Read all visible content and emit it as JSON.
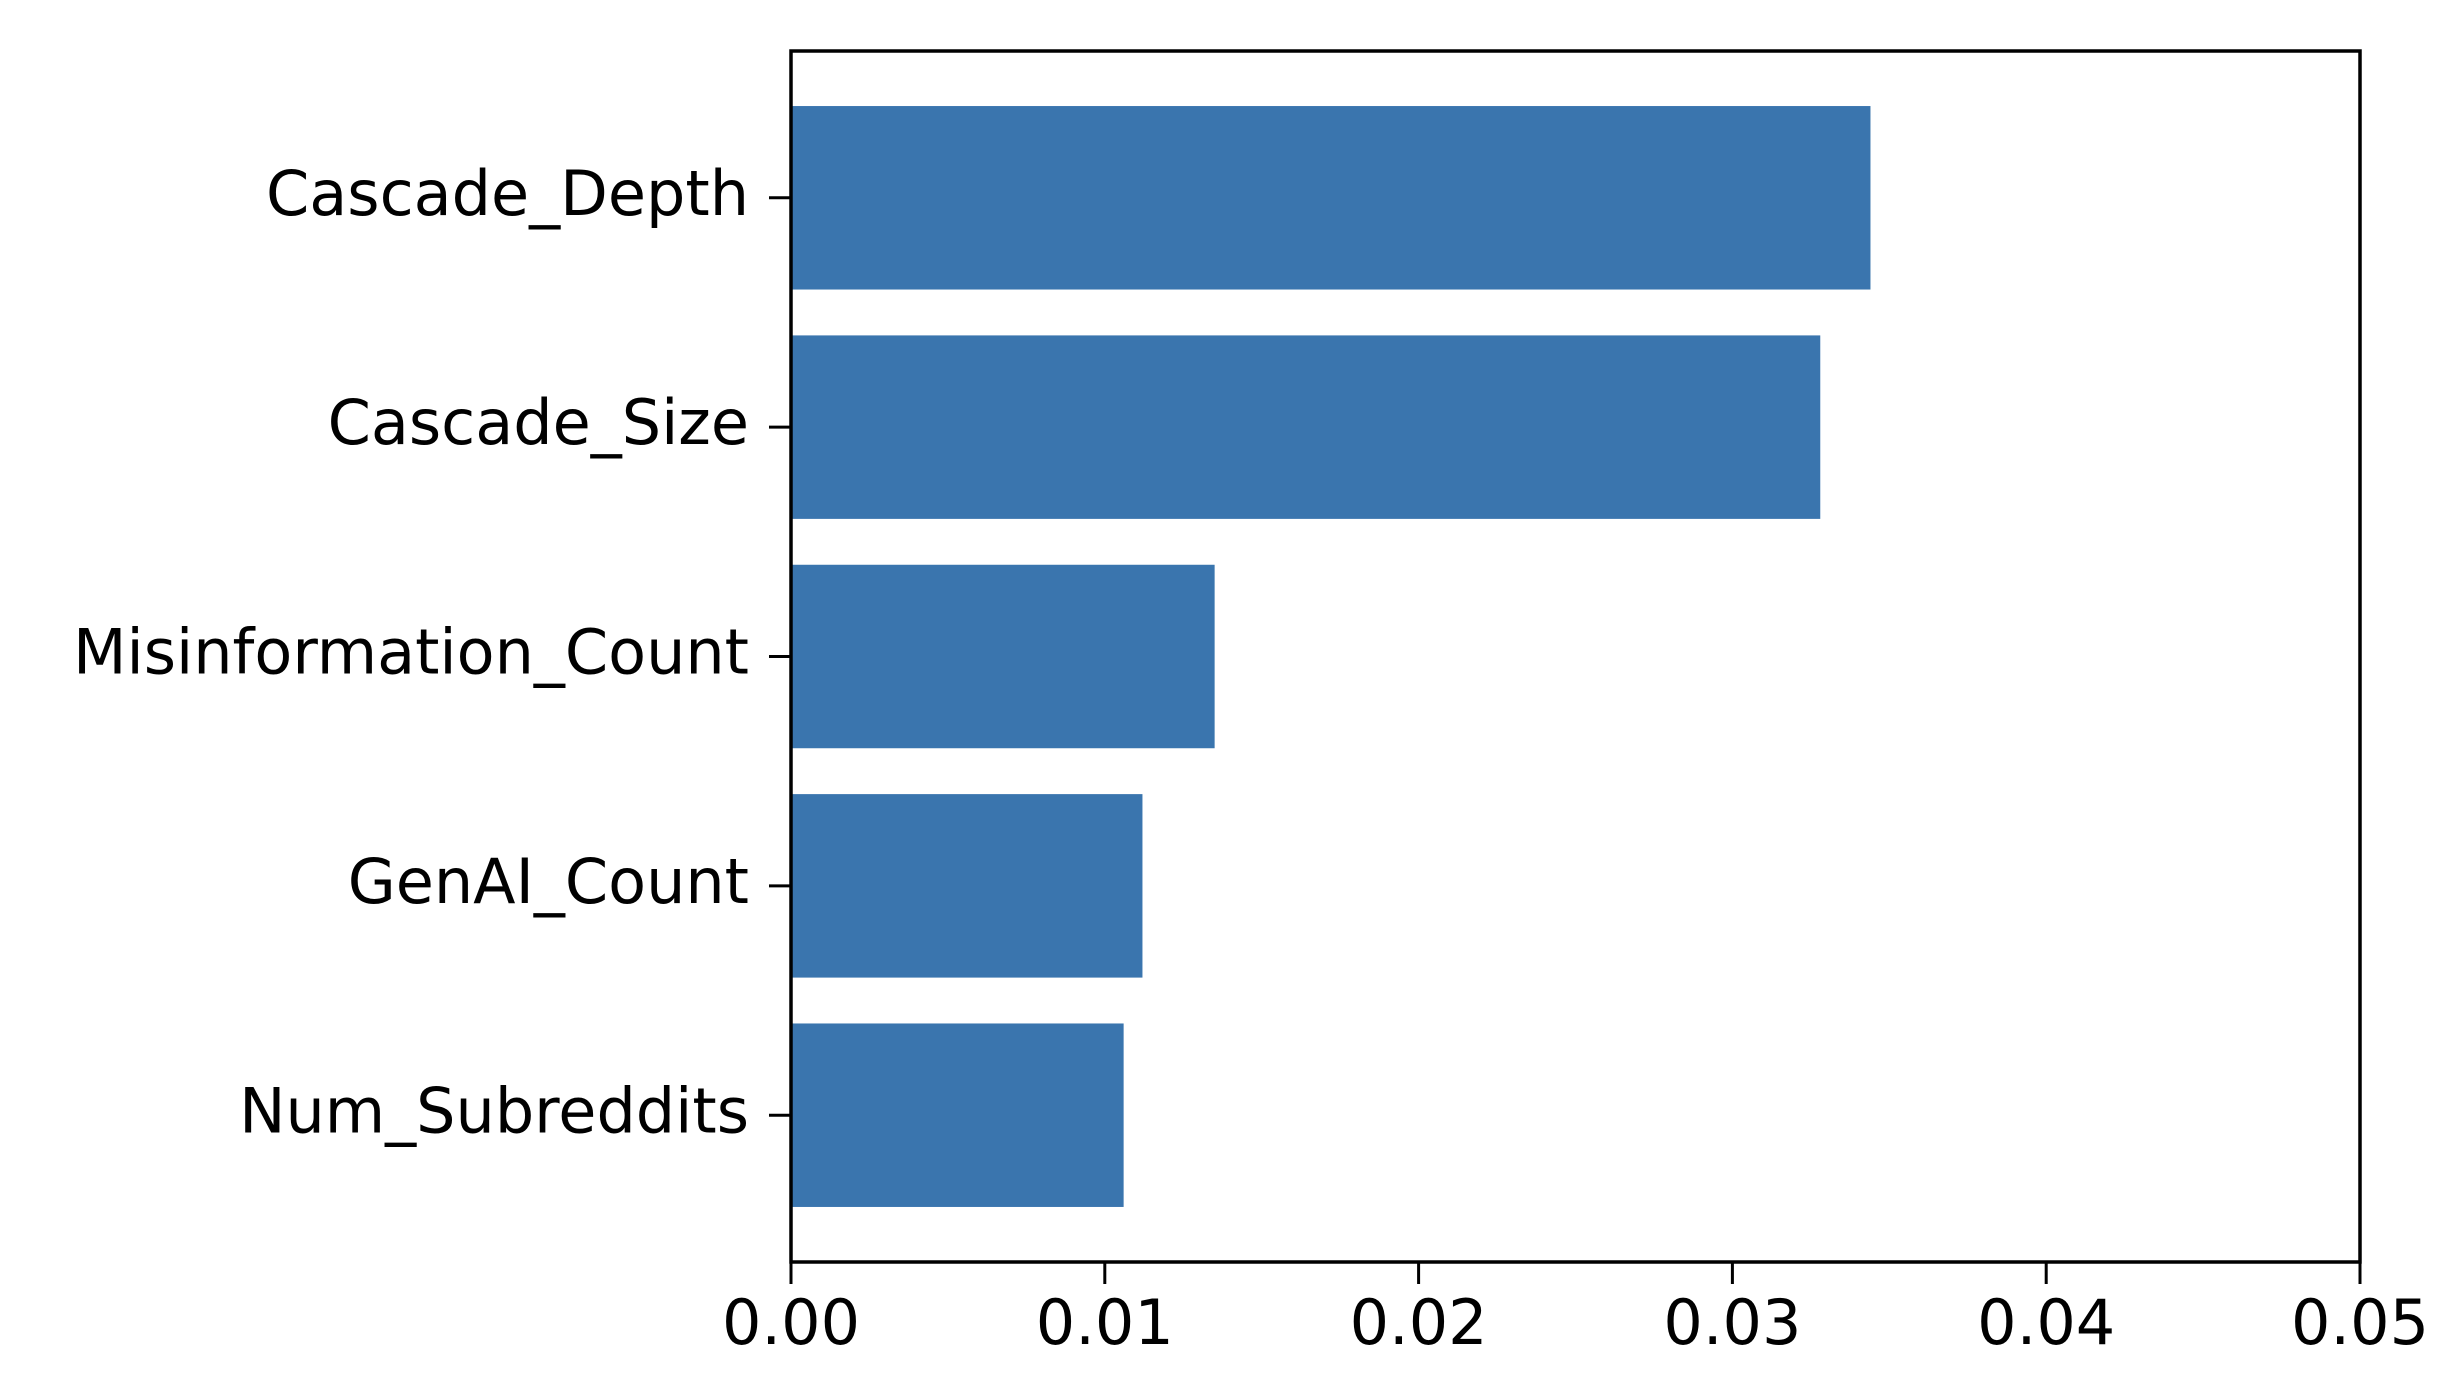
{
  "chart_data": {
    "type": "barh",
    "categories": [
      "Cascade_Depth",
      "Cascade_Size",
      "Misinformation_Count",
      "GenAI_Count",
      "Num_Subreddits"
    ],
    "values": [
      0.0344,
      0.0328,
      0.0135,
      0.0112,
      0.0106
    ],
    "color": "#3a75ae",
    "xlim": [
      0,
      0.05
    ],
    "xticks": [
      {
        "value": 0,
        "label": "0.00"
      },
      0.01,
      0.02,
      0.03,
      0.04,
      0.05
    ],
    "grid": false
  }
}
